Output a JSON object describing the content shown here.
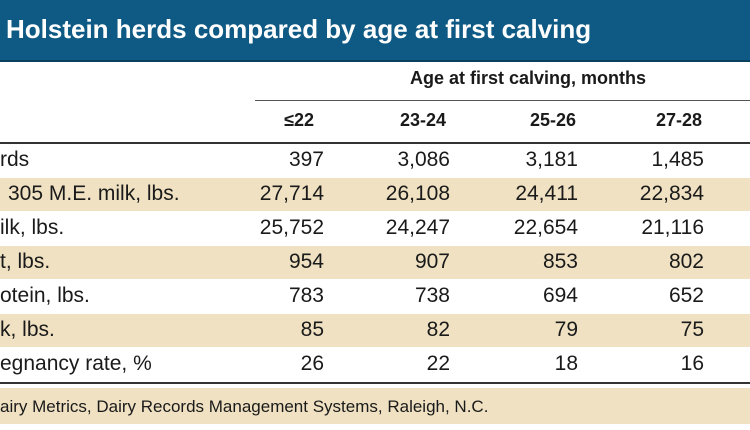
{
  "title": "Holstein herds compared by age at first calving",
  "header": {
    "group_caption": "Age at first calving, months",
    "columns": [
      "≤22",
      "23-24",
      "25-26",
      "27-28"
    ]
  },
  "rows": [
    {
      "label": "rds",
      "values": [
        "397",
        "3,086",
        "3,181",
        "1,485"
      ]
    },
    {
      "label": "305 M.E. milk, lbs.",
      "values": [
        "27,714",
        "26,108",
        "24,411",
        "22,834"
      ]
    },
    {
      "label": "ilk, lbs.",
      "values": [
        "25,752",
        "24,247",
        "22,654",
        "21,116"
      ]
    },
    {
      "label": "t, lbs.",
      "values": [
        "954",
        "907",
        "853",
        "802"
      ]
    },
    {
      "label": "otein, lbs.",
      "values": [
        "783",
        "738",
        "694",
        "652"
      ]
    },
    {
      "label": "k, lbs.",
      "values": [
        "85",
        "82",
        "79",
        "75"
      ]
    },
    {
      "label": "egnancy rate, %",
      "values": [
        "26",
        "22",
        "18",
        "16"
      ]
    }
  ],
  "source": "airy Metrics, Dairy Records Management Systems, Raleigh, N.C.",
  "colors": {
    "title_bar": "#0f5a85",
    "stripe": "#efe1c2"
  }
}
